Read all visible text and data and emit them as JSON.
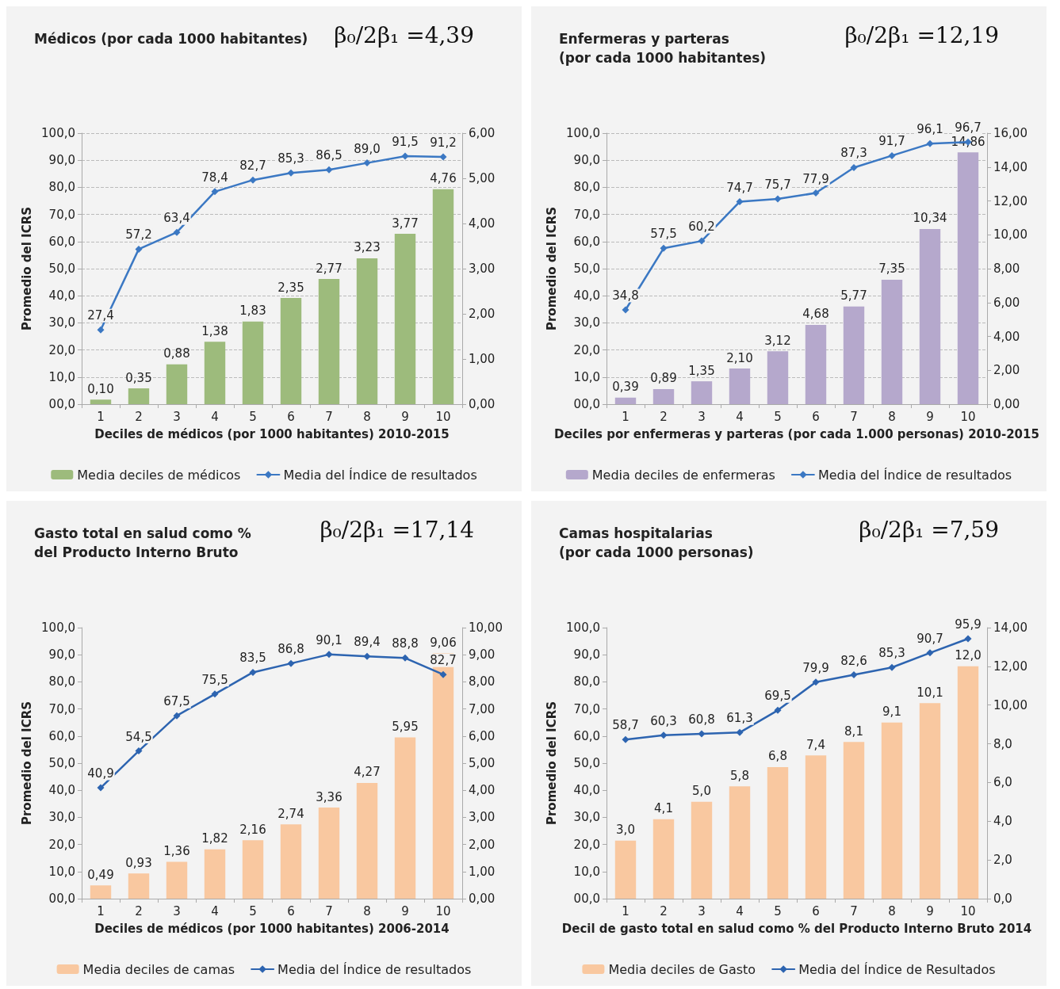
{
  "chart_data": [
    {
      "type": "bar",
      "title": "Médicos (por cada 1000 habitantes)",
      "annotations": [
        "β₀/2β₁ =4,39"
      ],
      "xlabel": "Deciles de médicos (por 1000 habitantes) 2010-2015",
      "ylabel": "Promedio del ICRS",
      "categories": [
        "1",
        "2",
        "3",
        "4",
        "5",
        "6",
        "7",
        "8",
        "9",
        "10"
      ],
      "ylim": [
        0,
        100
      ],
      "yticks": [
        {
          "value": 0,
          "label": "00,0"
        },
        {
          "value": 10,
          "label": "10,0"
        },
        {
          "value": 20,
          "label": "20,0"
        },
        {
          "value": 30,
          "label": "30,0"
        },
        {
          "value": 40,
          "label": "40,0"
        },
        {
          "value": 50,
          "label": "50,0"
        },
        {
          "value": 60,
          "label": "60,0"
        },
        {
          "value": 70,
          "label": "70,0"
        },
        {
          "value": 80,
          "label": "80,0"
        },
        {
          "value": 90,
          "label": "90,0"
        },
        {
          "value": 100,
          "label": "100,0"
        }
      ],
      "y2lim": [
        0,
        6
      ],
      "y2ticks": [
        {
          "value": 0,
          "label": "0,00"
        },
        {
          "value": 1,
          "label": "1,00"
        },
        {
          "value": 2,
          "label": "2,00"
        },
        {
          "value": 3,
          "label": "3,00"
        },
        {
          "value": 4,
          "label": "4,00"
        },
        {
          "value": 5,
          "label": "5,00"
        },
        {
          "value": 6,
          "label": "6,00"
        }
      ],
      "grid": "y",
      "legend": "bottom",
      "marker": "diamond",
      "line_style": "solid",
      "series": [
        {
          "name": "Media deciles de médicos",
          "axis": "y2",
          "color": "#9dbb7c",
          "values": [
            0.1,
            0.35,
            0.88,
            1.38,
            1.83,
            2.35,
            2.77,
            3.23,
            3.77,
            4.76
          ],
          "value_labels": [
            "0,10",
            "0,35",
            "0,88",
            "1,38",
            "1,83",
            "2,35",
            "2,77",
            "3,23",
            "3,77",
            "4,76"
          ]
        },
        {
          "name": "Media del Índice de resultados",
          "type": "line",
          "color": "#3b78c3",
          "values": [
            27.4,
            57.2,
            63.4,
            78.4,
            82.7,
            85.3,
            86.5,
            89.0,
            91.5,
            91.2
          ],
          "value_labels": [
            "27,4",
            "57,2",
            "63,4",
            "78,4",
            "82,7",
            "85,3",
            "86,5",
            "89,0",
            "91,5",
            "91,2"
          ]
        }
      ]
    },
    {
      "type": "bar",
      "title": "Enfermeras y parteras\n(por cada 1000 habitantes)",
      "annotations": [
        "β₀/2β₁ =12,19"
      ],
      "xlabel": "Deciles por enfermeras y parteras (por cada 1.000 personas) 2010-2015",
      "ylabel": "Promedio del ICRS",
      "categories": [
        "1",
        "2",
        "3",
        "4",
        "5",
        "6",
        "7",
        "8",
        "9",
        "10"
      ],
      "ylim": [
        0,
        100
      ],
      "yticks": [
        {
          "value": 0,
          "label": "00,0"
        },
        {
          "value": 10,
          "label": "10,0"
        },
        {
          "value": 20,
          "label": "20,0"
        },
        {
          "value": 30,
          "label": "30,0"
        },
        {
          "value": 40,
          "label": "40,0"
        },
        {
          "value": 50,
          "label": "50,0"
        },
        {
          "value": 60,
          "label": "60,0"
        },
        {
          "value": 70,
          "label": "70,0"
        },
        {
          "value": 80,
          "label": "80,0"
        },
        {
          "value": 90,
          "label": "90,0"
        },
        {
          "value": 100,
          "label": "100,0"
        }
      ],
      "y2lim": [
        0,
        16
      ],
      "y2ticks": [
        {
          "value": 0,
          "label": "0,00"
        },
        {
          "value": 2,
          "label": "2,00"
        },
        {
          "value": 4,
          "label": "4,00"
        },
        {
          "value": 6,
          "label": "6,00"
        },
        {
          "value": 8,
          "label": "8,00"
        },
        {
          "value": 10,
          "label": "10,00"
        },
        {
          "value": 12,
          "label": "12,00"
        },
        {
          "value": 14,
          "label": "14,00"
        },
        {
          "value": 16,
          "label": "16,00"
        }
      ],
      "grid": "y",
      "legend": "bottom",
      "marker": "diamond",
      "line_style": "solid",
      "series": [
        {
          "name": "Media deciles de enfermeras",
          "axis": "y2",
          "color": "#b5a8cc",
          "values": [
            0.39,
            0.89,
            1.35,
            2.1,
            3.12,
            4.68,
            5.77,
            7.35,
            10.34,
            14.86
          ],
          "value_labels": [
            "0,39",
            "0,89",
            "1,35",
            "2,10",
            "3,12",
            "4,68",
            "5,77",
            "7,35",
            "10,34",
            "14,86"
          ]
        },
        {
          "name": "Media del Índice de resultados",
          "type": "line",
          "color": "#3b78c3",
          "values": [
            34.8,
            57.5,
            60.2,
            74.7,
            75.7,
            77.9,
            87.3,
            91.7,
            96.1,
            96.7
          ],
          "value_labels": [
            "34,8",
            "57,5",
            "60,2",
            "74,7",
            "75,7",
            "77,9",
            "87,3",
            "91,7",
            "96,1",
            "96,7"
          ]
        }
      ]
    },
    {
      "type": "bar",
      "title": "Gasto total en salud como %\ndel Producto Interno Bruto",
      "annotations": [
        "β₀/2β₁ =17,14"
      ],
      "xlabel": "Deciles de médicos (por 1000 habitantes) 2006-2014",
      "ylabel": "Promedio del ICRS",
      "categories": [
        "1",
        "2",
        "3",
        "4",
        "5",
        "6",
        "7",
        "8",
        "9",
        "10"
      ],
      "ylim": [
        0,
        100
      ],
      "yticks": [
        {
          "value": 0,
          "label": "00,0"
        },
        {
          "value": 10,
          "label": "10,0"
        },
        {
          "value": 20,
          "label": "20,0"
        },
        {
          "value": 30,
          "label": "30,0"
        },
        {
          "value": 40,
          "label": "40,0"
        },
        {
          "value": 50,
          "label": "50,0"
        },
        {
          "value": 60,
          "label": "60,0"
        },
        {
          "value": 70,
          "label": "70,0"
        },
        {
          "value": 80,
          "label": "80,0"
        },
        {
          "value": 90,
          "label": "90,0"
        },
        {
          "value": 100,
          "label": "100,0"
        }
      ],
      "y2lim": [
        0,
        10
      ],
      "y2ticks": [
        {
          "value": 0,
          "label": "0,00"
        },
        {
          "value": 1,
          "label": "1,00"
        },
        {
          "value": 2,
          "label": "2,00"
        },
        {
          "value": 3,
          "label": "3,00"
        },
        {
          "value": 4,
          "label": "4,00"
        },
        {
          "value": 5,
          "label": "5,00"
        },
        {
          "value": 6,
          "label": "6,00"
        },
        {
          "value": 7,
          "label": "7,00"
        },
        {
          "value": 8,
          "label": "8,00"
        },
        {
          "value": 9,
          "label": "9,00"
        },
        {
          "value": 10,
          "label": "10,00"
        }
      ],
      "grid": false,
      "legend": "bottom",
      "marker": "diamond",
      "line_style": "solid",
      "series": [
        {
          "name": "Media deciles de camas",
          "axis": "y2",
          "color": "#f9c8a0",
          "values": [
            0.49,
            0.93,
            1.36,
            1.82,
            2.16,
            2.74,
            3.36,
            4.27,
            5.95,
            9.06
          ],
          "value_labels": [
            "0,49",
            "0,93",
            "1,36",
            "1,82",
            "2,16",
            "2,74",
            "3,36",
            "4,27",
            "5,95",
            "9,06"
          ]
        },
        {
          "name": "Media del Índice de resultados",
          "type": "line",
          "color": "#2d64b0",
          "values": [
            40.9,
            54.5,
            67.5,
            75.5,
            83.5,
            86.8,
            90.1,
            89.4,
            88.8,
            82.7
          ],
          "value_labels": [
            "40,9",
            "54,5",
            "67,5",
            "75,5",
            "83,5",
            "86,8",
            "90,1",
            "89,4",
            "88,8",
            "82,7"
          ]
        }
      ]
    },
    {
      "type": "bar",
      "title": "Camas hospitalarias\n(por cada 1000 personas)",
      "annotations": [
        "β₀/2β₁ =7,59"
      ],
      "xlabel": "Decil de gasto total en salud como % del Producto Interno Bruto 2014",
      "ylabel": "Promedio del ICRS",
      "categories": [
        "1",
        "2",
        "3",
        "4",
        "5",
        "6",
        "7",
        "8",
        "9",
        "10"
      ],
      "ylim": [
        0,
        100
      ],
      "yticks": [
        {
          "value": 0,
          "label": "00,0"
        },
        {
          "value": 10,
          "label": "10,0"
        },
        {
          "value": 20,
          "label": "20,0"
        },
        {
          "value": 30,
          "label": "30,0"
        },
        {
          "value": 40,
          "label": "40,0"
        },
        {
          "value": 50,
          "label": "50,0"
        },
        {
          "value": 60,
          "label": "60,0"
        },
        {
          "value": 70,
          "label": "70,0"
        },
        {
          "value": 80,
          "label": "80,0"
        },
        {
          "value": 90,
          "label": "90,0"
        },
        {
          "value": 100,
          "label": "100,0"
        }
      ],
      "y2lim": [
        0,
        14
      ],
      "y2ticks": [
        {
          "value": 0,
          "label": "0,0"
        },
        {
          "value": 2,
          "label": "2,0"
        },
        {
          "value": 4,
          "label": "4,0"
        },
        {
          "value": 6,
          "label": "6,0"
        },
        {
          "value": 8,
          "label": "8,0"
        },
        {
          "value": 10,
          "label": "10,00"
        },
        {
          "value": 12,
          "label": "12,00"
        },
        {
          "value": 14,
          "label": "14,00"
        }
      ],
      "grid": false,
      "legend": "bottom",
      "marker": "diamond",
      "line_style": "solid",
      "series": [
        {
          "name": "Media deciles de Gasto",
          "axis": "y2",
          "color": "#f9c8a0",
          "values": [
            3.0,
            4.1,
            5.0,
            5.8,
            6.8,
            7.4,
            8.1,
            9.1,
            10.1,
            12.0
          ],
          "value_labels": [
            "3,0",
            "4,1",
            "5,0",
            "5,8",
            "6,8",
            "7,4",
            "8,1",
            "9,1",
            "10,1",
            "12,0"
          ]
        },
        {
          "name": "Media del Índice de Resultados",
          "type": "line",
          "color": "#2d64b0",
          "values": [
            58.7,
            60.3,
            60.8,
            61.3,
            69.5,
            79.9,
            82.6,
            85.3,
            90.7,
            95.9
          ],
          "value_labels": [
            "58,7",
            "60,3",
            "60,8",
            "61,3",
            "69,5",
            "79,9",
            "82,6",
            "85,3",
            "90,7",
            "95,9"
          ]
        }
      ]
    }
  ]
}
